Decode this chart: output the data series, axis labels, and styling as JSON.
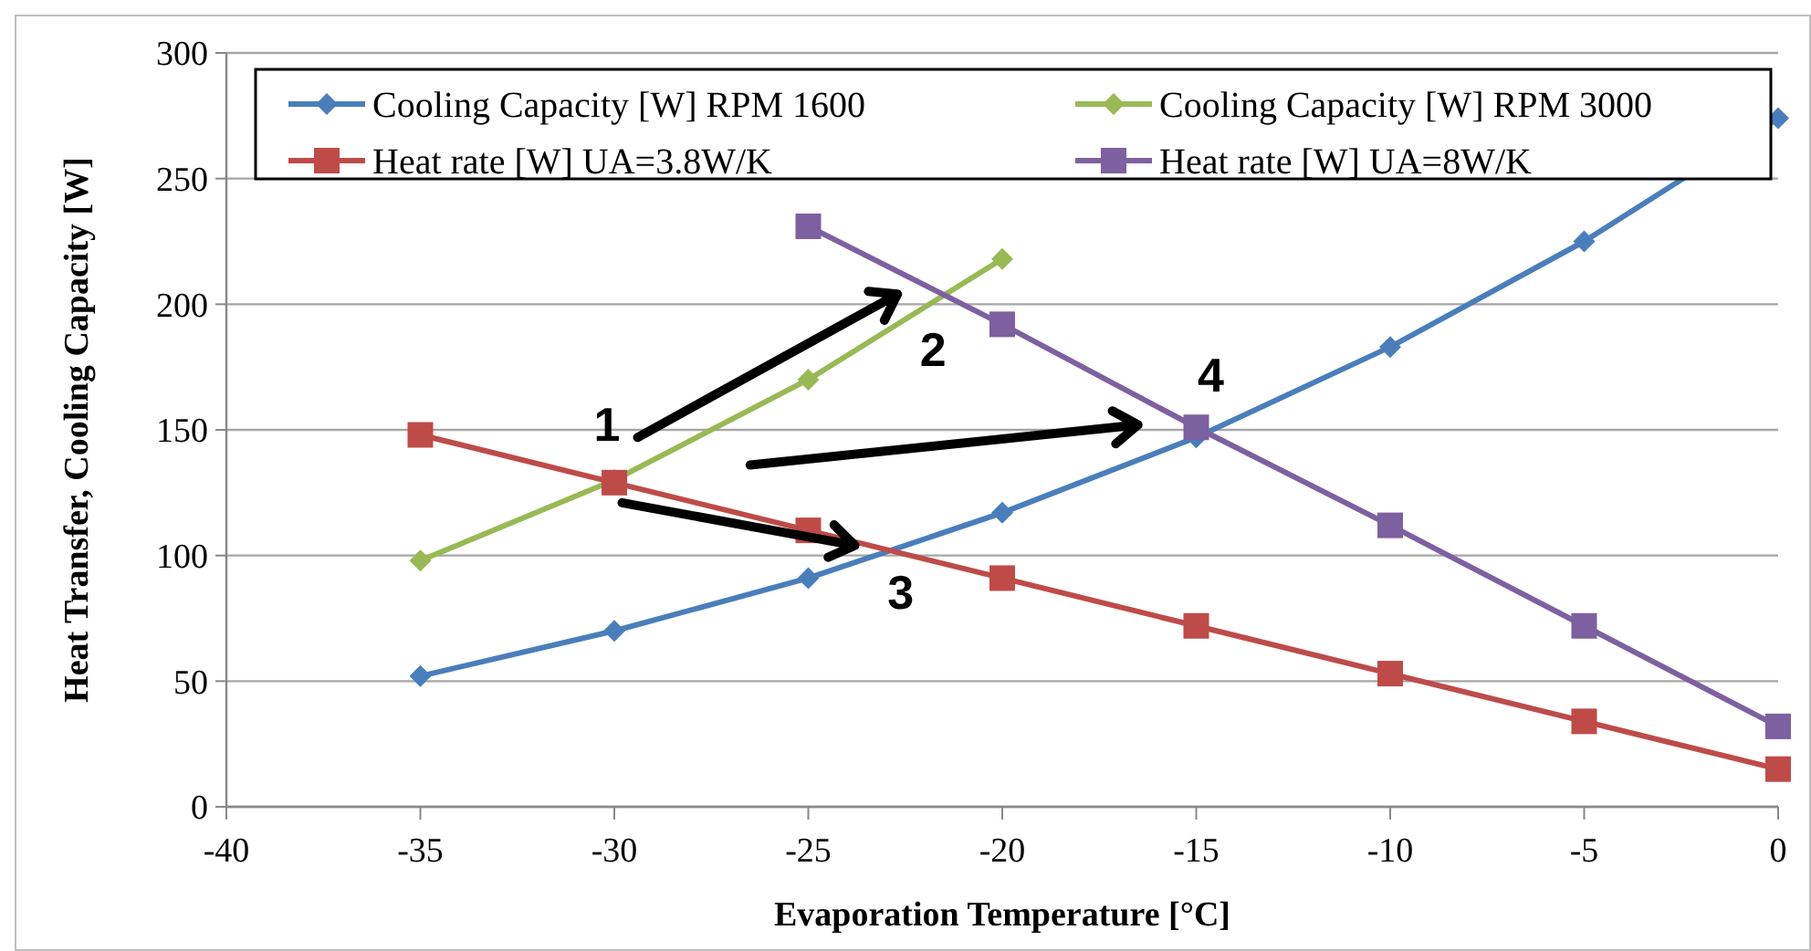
{
  "chart_data": {
    "type": "line",
    "xlabel": "Evaporation Temperature [°C]",
    "ylabel": "Heat Transfer, Cooling Capacity [W]",
    "x": [
      -35,
      -30,
      -25,
      -20,
      -15,
      -10,
      -5,
      0
    ],
    "series": [
      {
        "name": "Cooling Capacity [W] RPM 1600",
        "color": "#4a7ebb",
        "marker": "diamond",
        "values": [
          52,
          70,
          91,
          117,
          147,
          183,
          225,
          274
        ]
      },
      {
        "name": "Cooling Capacity [W] RPM 3000",
        "color": "#98b954",
        "marker": "diamond",
        "values": [
          98,
          130,
          170,
          218,
          null,
          null,
          null,
          null
        ]
      },
      {
        "name": "Heat rate [W] UA=3.8W/K",
        "color": "#be4b48",
        "marker": "square",
        "values": [
          148,
          129,
          110,
          91,
          72,
          53,
          34,
          15
        ]
      },
      {
        "name": "Heat rate [W] UA=8W/K",
        "color": "#7d60a0",
        "marker": "square",
        "values": [
          null,
          null,
          231,
          192,
          151,
          112,
          72,
          32
        ]
      }
    ],
    "xlim": [
      -40,
      0
    ],
    "xticks": [
      -40,
      -35,
      -30,
      -25,
      -20,
      -15,
      -10,
      -5,
      0
    ],
    "ylim": [
      0,
      300
    ],
    "yticks": [
      0,
      50,
      100,
      150,
      200,
      250,
      300
    ],
    "grid": "y",
    "legend": "top",
    "line_style": "solid",
    "annotations": [
      {
        "text": "1",
        "x": -30,
        "y": 129
      },
      {
        "text": "2",
        "x": -21.5,
        "y": 204
      },
      {
        "text": "3",
        "x": -22.9,
        "y": 102
      },
      {
        "text": "4",
        "x": -15,
        "y": 150
      }
    ]
  }
}
